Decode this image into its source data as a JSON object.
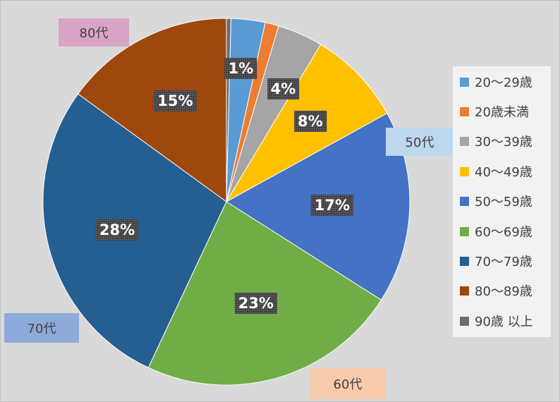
{
  "chart_data": {
    "type": "pie",
    "start_angle_deg": 0,
    "direction": "clockwise",
    "slices": [
      {
        "label": "90歳 以上",
        "value": 0.4,
        "color": "#6d6d6d",
        "data_label": ""
      },
      {
        "label": "20〜29歳",
        "value": 3,
        "color": "#5b9bd5",
        "data_label": ""
      },
      {
        "label": "20歳未満",
        "value": 1.2,
        "color": "#ed7d31",
        "data_label": "1%"
      },
      {
        "label": "30〜39歳",
        "value": 4,
        "color": "#a5a5a5",
        "data_label": "4%"
      },
      {
        "label": "40〜49歳",
        "value": 8.4,
        "color": "#ffc000",
        "data_label": "8%"
      },
      {
        "label": "50〜59歳",
        "value": 17,
        "color": "#4472c4",
        "data_label": "17%"
      },
      {
        "label": "60〜69歳",
        "value": 23,
        "color": "#70ad47",
        "data_label": "23%"
      },
      {
        "label": "70〜79歳",
        "value": 28,
        "color": "#255e91",
        "data_label": "28%"
      },
      {
        "label": "80〜89歳",
        "value": 15,
        "color": "#9e480e",
        "data_label": "15%"
      }
    ],
    "legend": {
      "placement": "right",
      "entries": [
        {
          "label": "20〜29歳",
          "color": "#5b9bd5"
        },
        {
          "label": "20歳未満",
          "color": "#ed7d31"
        },
        {
          "label": "30〜39歳",
          "color": "#a5a5a5"
        },
        {
          "label": "40〜49歳",
          "color": "#ffc000"
        },
        {
          "label": "50〜59歳",
          "color": "#4472c4"
        },
        {
          "label": "60〜69歳",
          "color": "#70ad47"
        },
        {
          "label": "70〜79歳",
          "color": "#255e91"
        },
        {
          "label": "80〜89歳",
          "color": "#9e480e"
        },
        {
          "label": "90歳 以上",
          "color": "#6d6d6d"
        }
      ]
    },
    "annotations": [
      {
        "text": "80代",
        "bg": "#d9a5c6"
      },
      {
        "text": "50代",
        "bg": "#bdd7ee"
      },
      {
        "text": "70代",
        "bg": "#8eaadb"
      },
      {
        "text": "60代",
        "bg": "#f8cbad"
      }
    ]
  }
}
